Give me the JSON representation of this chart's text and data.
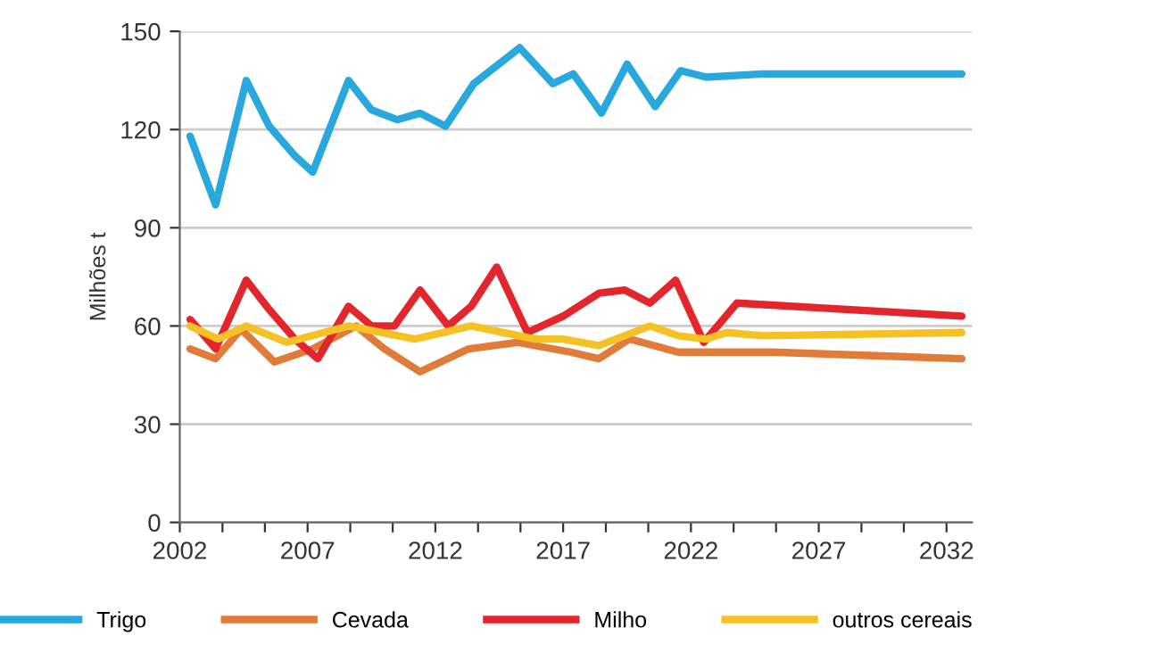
{
  "chart_data": {
    "type": "line",
    "ylabel": "Milhões t",
    "xlim": [
      2002,
      2033
    ],
    "ylim": [
      0,
      150
    ],
    "xticks": [
      {
        "value": 2002,
        "label": "2002"
      },
      {
        "value": 2003.67,
        "label": null
      },
      {
        "value": 2005.33,
        "label": null
      },
      {
        "value": 2007,
        "label": "2007"
      },
      {
        "value": 2008.67,
        "label": null
      },
      {
        "value": 2010.33,
        "label": null
      },
      {
        "value": 2012,
        "label": "2012"
      },
      {
        "value": 2013.67,
        "label": null
      },
      {
        "value": 2015.33,
        "label": null
      },
      {
        "value": 2017,
        "label": "2017"
      },
      {
        "value": 2018.67,
        "label": null
      },
      {
        "value": 2020.33,
        "label": null
      },
      {
        "value": 2022,
        "label": "2022"
      },
      {
        "value": 2023.67,
        "label": null
      },
      {
        "value": 2025.33,
        "label": null
      },
      {
        "value": 2027,
        "label": "2027"
      },
      {
        "value": 2028.67,
        "label": null
      },
      {
        "value": 2030.33,
        "label": null
      },
      {
        "value": 2032,
        "label": "2032"
      }
    ],
    "yticks": [
      0,
      30,
      60,
      90,
      120,
      150
    ],
    "grid": "y",
    "legend": "bottom",
    "marker": "none",
    "line_style": "solid",
    "series": [
      {
        "name": "Trigo",
        "color": "#29a8de",
        "x": [
          2002.4,
          2003.4,
          2004.6,
          2005.5,
          2006.5,
          2007.2,
          2008.6,
          2009.5,
          2010.5,
          2011.4,
          2012.4,
          2013.5,
          2015.3,
          2016.6,
          2017.4,
          2018.5,
          2019.5,
          2020.6,
          2021.6,
          2022.6,
          2024.8,
          2032.6
        ],
        "values": [
          118,
          97,
          135,
          121,
          112,
          107,
          135,
          126,
          123,
          125,
          121,
          134,
          145,
          134,
          137,
          125,
          140,
          127,
          138,
          136,
          137,
          137
        ]
      },
      {
        "name": "Cevada",
        "color": "#e07b39",
        "x": [
          2002.4,
          2003.4,
          2004.4,
          2005.7,
          2007.2,
          2008.9,
          2010.0,
          2011.4,
          2013.3,
          2015.2,
          2017.3,
          2018.4,
          2019.6,
          2021.5,
          2025.2,
          2032.6
        ],
        "values": [
          53,
          50,
          59,
          49,
          53,
          60,
          53,
          46,
          53,
          55,
          52,
          50,
          56,
          52,
          52,
          50
        ]
      },
      {
        "name": "Milho",
        "color": "#e3262b",
        "x": [
          2002.4,
          2003.4,
          2004.6,
          2005.5,
          2006.5,
          2007.4,
          2008.6,
          2009.5,
          2010.4,
          2011.4,
          2012.5,
          2013.4,
          2014.4,
          2015.6,
          2017.0,
          2018.4,
          2019.4,
          2020.4,
          2021.4,
          2022.5,
          2023.8,
          2032.6
        ],
        "values": [
          62,
          53,
          74,
          65,
          56,
          50,
          66,
          60,
          60,
          71,
          60,
          66,
          78,
          58,
          63,
          70,
          71,
          67,
          74,
          55,
          67,
          63
        ]
      },
      {
        "name": "outros cereais",
        "color": "#f5c225",
        "x": [
          2002.4,
          2003.5,
          2004.6,
          2006.2,
          2008.6,
          2011.2,
          2013.4,
          2015.9,
          2017.0,
          2018.4,
          2020.4,
          2021.5,
          2022.6,
          2023.4,
          2024.8,
          2032.6
        ],
        "values": [
          60,
          56,
          60,
          55,
          60,
          56,
          60,
          56,
          56,
          54,
          60,
          57,
          56,
          58,
          57,
          58
        ]
      }
    ]
  }
}
